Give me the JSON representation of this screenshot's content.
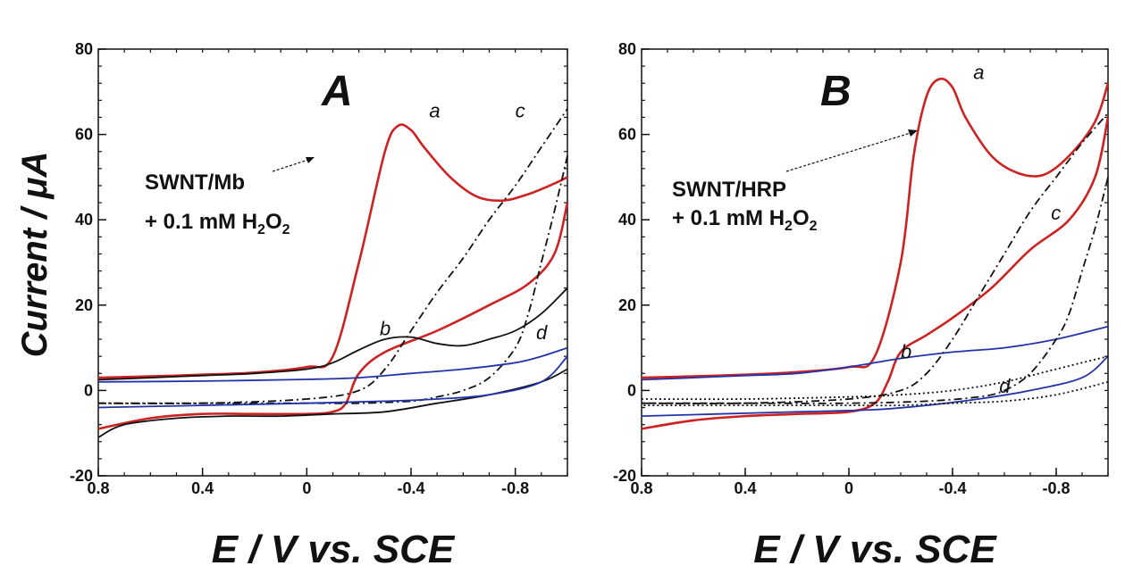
{
  "figure": {
    "ylabel": "Current / μA",
    "panels": [
      {
        "letter": "A",
        "annotation_line1": "SWNT/Mb",
        "annotation_line2_prefix": "+ 0.1 mM H",
        "annotation_sub1": "2",
        "annotation_mid": "O",
        "annotation_sub2": "2"
      },
      {
        "letter": "B",
        "annotation_line1": "SWNT/HRP",
        "annotation_line2_prefix": "+ 0.1 mM H",
        "annotation_sub1": "2",
        "annotation_mid": "O",
        "annotation_sub2": "2"
      }
    ]
  },
  "chart_data": [
    {
      "type": "line",
      "panel": "A",
      "xlabel": "E / V vs. SCE",
      "ylabel": "Current / μA",
      "xlim": [
        0.8,
        -1.0
      ],
      "ylim": [
        -20,
        80
      ],
      "x_ticks": [
        0.8,
        0.4,
        0,
        -0.4,
        -0.8
      ],
      "x_tick_labels": [
        "0.8",
        "0.4",
        "0",
        "-0.4",
        "-0.8"
      ],
      "y_ticks": [
        -20,
        0,
        20,
        40,
        60,
        80
      ],
      "y_tick_labels": [
        "-20",
        "0",
        "20",
        "40",
        "60",
        "80"
      ],
      "colors": {
        "red": "#cc2222",
        "black": "#111111",
        "blue": "#2233aa"
      },
      "series": [
        {
          "label": "a",
          "color": "red",
          "dash": "solid",
          "x": [
            0.8,
            0.6,
            0.4,
            0.2,
            0.0,
            -0.1,
            -0.2,
            -0.3,
            -0.35,
            -0.4,
            -0.45,
            -0.55,
            -0.65,
            -0.75,
            -0.85,
            -0.95,
            -1.0
          ],
          "y": [
            3,
            3.3,
            3.7,
            4.2,
            5.5,
            8,
            30,
            56,
            62,
            61,
            57,
            50,
            45.5,
            44.5,
            46,
            48.5,
            50
          ]
        },
        {
          "label": "a-return",
          "color": "red",
          "dash": "solid",
          "x": [
            -1.0,
            -0.95,
            -0.85,
            -0.7,
            -0.5,
            -0.3,
            -0.2,
            -0.15,
            -0.1,
            0.0,
            0.2,
            0.4,
            0.6,
            0.8
          ],
          "y": [
            44,
            32,
            25,
            20,
            14,
            9,
            4,
            -3,
            -5,
            -5.5,
            -5.5,
            -5.5,
            -6.5,
            -9
          ]
        },
        {
          "label": "b",
          "color": "black",
          "dash": "solid",
          "x": [
            0.8,
            0.6,
            0.4,
            0.2,
            0.0,
            -0.1,
            -0.2,
            -0.3,
            -0.4,
            -0.5,
            -0.6,
            -0.7,
            -0.8,
            -0.9,
            -1.0
          ],
          "y": [
            2.5,
            3,
            3.5,
            4,
            5,
            6.5,
            9.5,
            12,
            12.5,
            11,
            10.5,
            12,
            14,
            18,
            24
          ]
        },
        {
          "label": "b-return",
          "color": "black",
          "dash": "solid",
          "x": [
            -1.0,
            -0.9,
            -0.7,
            -0.5,
            -0.3,
            -0.1,
            0.1,
            0.3,
            0.5,
            0.7,
            0.8
          ],
          "y": [
            5,
            2,
            -1,
            -3,
            -5,
            -5.5,
            -6,
            -6,
            -6.5,
            -8,
            -11
          ]
        },
        {
          "label": "c",
          "color": "black",
          "dash": "dashdot",
          "x": [
            0.8,
            0.4,
            0.0,
            -0.2,
            -0.3,
            -0.4,
            -0.5,
            -0.6,
            -0.7,
            -0.8,
            -0.9,
            -1.0
          ],
          "y": [
            -3,
            -3,
            -2,
            0,
            5,
            14,
            23,
            31,
            40,
            48,
            57,
            66
          ]
        },
        {
          "label": "c-return",
          "color": "black",
          "dash": "dashdot",
          "x": [
            -1.0,
            -0.95,
            -0.9,
            -0.85,
            -0.8,
            -0.7,
            -0.6,
            -0.5,
            -0.4,
            -0.2,
            0.0,
            0.4,
            0.8
          ],
          "y": [
            55,
            42,
            30,
            18,
            10,
            3,
            0,
            -1.5,
            -2.5,
            -3,
            -3,
            -3,
            -3
          ]
        },
        {
          "label": "d",
          "color": "blue",
          "dash": "solid",
          "x": [
            0.8,
            0.4,
            0.0,
            -0.2,
            -0.4,
            -0.6,
            -0.8,
            -0.9,
            -1.0
          ],
          "y": [
            2,
            2.2,
            2.6,
            3,
            4,
            5,
            6.5,
            8,
            10
          ]
        },
        {
          "label": "d-return",
          "color": "blue",
          "dash": "solid",
          "x": [
            -1.0,
            -0.9,
            -0.7,
            -0.5,
            -0.3,
            0.0,
            0.4,
            0.8
          ],
          "y": [
            8,
            2,
            -1,
            -2,
            -2.5,
            -3,
            -3.5,
            -4
          ]
        }
      ]
    },
    {
      "type": "line",
      "panel": "B",
      "xlabel": "E / V vs. SCE",
      "ylabel": "",
      "xlim": [
        0.8,
        -1.0
      ],
      "ylim": [
        -20,
        80
      ],
      "x_ticks": [
        0.8,
        0.4,
        0,
        -0.4,
        -0.8
      ],
      "x_tick_labels": [
        "0.8",
        "0.4",
        "0",
        "-0.4",
        "-0.8"
      ],
      "y_ticks": [
        -20,
        0,
        20,
        40,
        60,
        80
      ],
      "y_tick_labels": [
        "-20",
        "0",
        "20",
        "40",
        "60",
        "80"
      ],
      "colors": {
        "red": "#cc2222",
        "black": "#111111",
        "blue": "#2233aa"
      },
      "series": [
        {
          "label": "a",
          "color": "red",
          "dash": "solid",
          "x": [
            0.8,
            0.6,
            0.4,
            0.2,
            0.0,
            -0.1,
            -0.2,
            -0.25,
            -0.3,
            -0.35,
            -0.4,
            -0.45,
            -0.55,
            -0.65,
            -0.75,
            -0.85,
            -0.95,
            -1.0
          ],
          "y": [
            3,
            3.3,
            3.7,
            4.3,
            5.5,
            8,
            30,
            55,
            69,
            73,
            71,
            64,
            55,
            51,
            50.5,
            55,
            63,
            72
          ]
        },
        {
          "label": "a-return",
          "color": "red",
          "dash": "solid",
          "x": [
            -1.0,
            -0.95,
            -0.85,
            -0.7,
            -0.55,
            -0.4,
            -0.3,
            -0.2,
            -0.15,
            -0.1,
            0.0,
            0.2,
            0.4,
            0.6,
            0.8
          ],
          "y": [
            64,
            50,
            40,
            33,
            24,
            17,
            13,
            9,
            2,
            -3,
            -5,
            -5.5,
            -6,
            -7,
            -9
          ]
        },
        {
          "label": "b",
          "color": "blue",
          "dash": "solid",
          "x": [
            0.8,
            0.6,
            0.4,
            0.2,
            0.0,
            -0.2,
            -0.4,
            -0.6,
            -0.8,
            -1.0
          ],
          "y": [
            2.5,
            3,
            3.5,
            4,
            5.5,
            7.5,
            9,
            10,
            12,
            15
          ]
        },
        {
          "label": "b-return",
          "color": "blue",
          "dash": "solid",
          "x": [
            -1.0,
            -0.9,
            -0.7,
            -0.5,
            -0.3,
            -0.1,
            0.2,
            0.5,
            0.8
          ],
          "y": [
            8,
            3,
            0,
            -2,
            -3.5,
            -4.5,
            -5,
            -5.5,
            -6
          ]
        },
        {
          "label": "c",
          "color": "black",
          "dash": "dashdot",
          "x": [
            0.8,
            0.4,
            0.0,
            -0.2,
            -0.3,
            -0.4,
            -0.5,
            -0.6,
            -0.7,
            -0.8,
            -0.9,
            -1.0
          ],
          "y": [
            -3,
            -3,
            -2,
            0,
            4,
            12,
            22,
            32,
            42,
            50,
            58,
            65
          ]
        },
        {
          "label": "c-return",
          "color": "black",
          "dash": "dashdot",
          "x": [
            -1.0,
            -0.95,
            -0.9,
            -0.85,
            -0.8,
            -0.7,
            -0.6,
            -0.5,
            -0.3,
            0.0,
            0.4,
            0.8
          ],
          "y": [
            50,
            38,
            28,
            18,
            12,
            4,
            0,
            -1.5,
            -2.5,
            -3,
            -3,
            -3
          ]
        },
        {
          "label": "d",
          "color": "black",
          "dash": "dotted",
          "x": [
            0.8,
            0.4,
            0.0,
            -0.2,
            -0.4,
            -0.6,
            -0.8,
            -1.0
          ],
          "y": [
            -2,
            -2,
            -1.5,
            -1,
            0,
            2,
            5,
            8
          ]
        },
        {
          "label": "d-return",
          "color": "black",
          "dash": "dotted",
          "x": [
            -1.0,
            -0.8,
            -0.6,
            -0.4,
            -0.2,
            0.0,
            0.4,
            0.8
          ],
          "y": [
            2,
            -1,
            -2.5,
            -3,
            -3.5,
            -3.5,
            -3.5,
            -3.5
          ]
        }
      ]
    }
  ]
}
